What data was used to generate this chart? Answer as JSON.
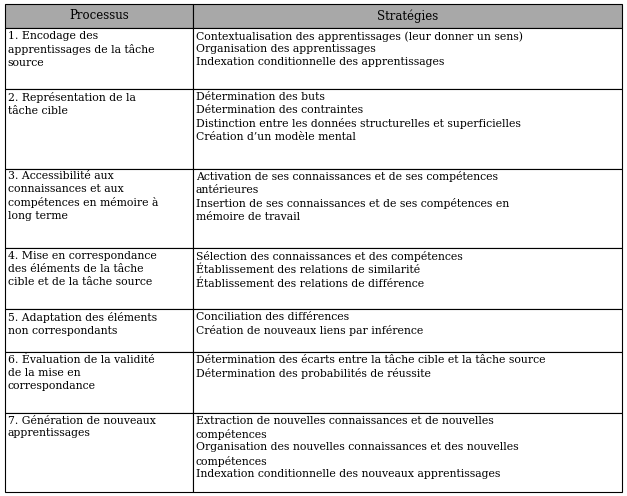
{
  "header": [
    "Processus",
    "Stratégies"
  ],
  "rows": [
    {
      "processus": "1. Encodage des\napprentissages de la tâche\nsource",
      "strategies": "Contextualisation des apprentissages (leur donner un sens)\nOrganisation des apprentissages\nIndexation conditionnelle des apprentissages"
    },
    {
      "processus": "2. Représentation de la\ntâche cible",
      "strategies": "Détermination des buts\nDétermination des contraintes\nDistinction entre les données structurelles et superficielles\nCréation d’un modèle mental"
    },
    {
      "processus": "3. Accessibilité aux\nconnaissances et aux\ncompétences en mémoire à\nlong terme",
      "strategies": "Activation de ses connaissances et de ses compétences\nantérieures\nInsertion de ses connaissances et de ses compétences en\nmémoire de travail"
    },
    {
      "processus": "4. Mise en correspondance\ndes éléments de la tâche\ncible et de la tâche source",
      "strategies": "Sélection des connaissances et des compétences\nÉtablissement des relations de similarité\nÉtablissement des relations de différence"
    },
    {
      "processus": "5. Adaptation des éléments\nnon correspondants",
      "strategies": "Conciliation des différences\nCréation de nouveaux liens par inférence"
    },
    {
      "processus": "6. Évaluation de la validité\nde la mise en\ncorrespondance",
      "strategies": "Détermination des écarts entre la tâche cible et la tâche source\nDétermination des probabilités de réussite"
    },
    {
      "processus": "7. Génération de nouveaux\napprentissages",
      "strategies": "Extraction de nouvelles connaissances et de nouvelles\ncompétences\nOrganisation des nouvelles connaissances et des nouvelles\ncompétences\nIndexation conditionnelle des nouveaux apprentissages"
    }
  ],
  "header_bg": "#a8a8a8",
  "row_bg": "#ffffff",
  "border_color": "#000000",
  "font_size": 7.8,
  "header_font_size": 8.5,
  "col_split": 0.305,
  "fig_width": 6.27,
  "fig_height": 4.96,
  "line_counts": [
    3,
    4,
    4,
    3,
    2,
    3,
    4
  ],
  "header_line_count": 1
}
